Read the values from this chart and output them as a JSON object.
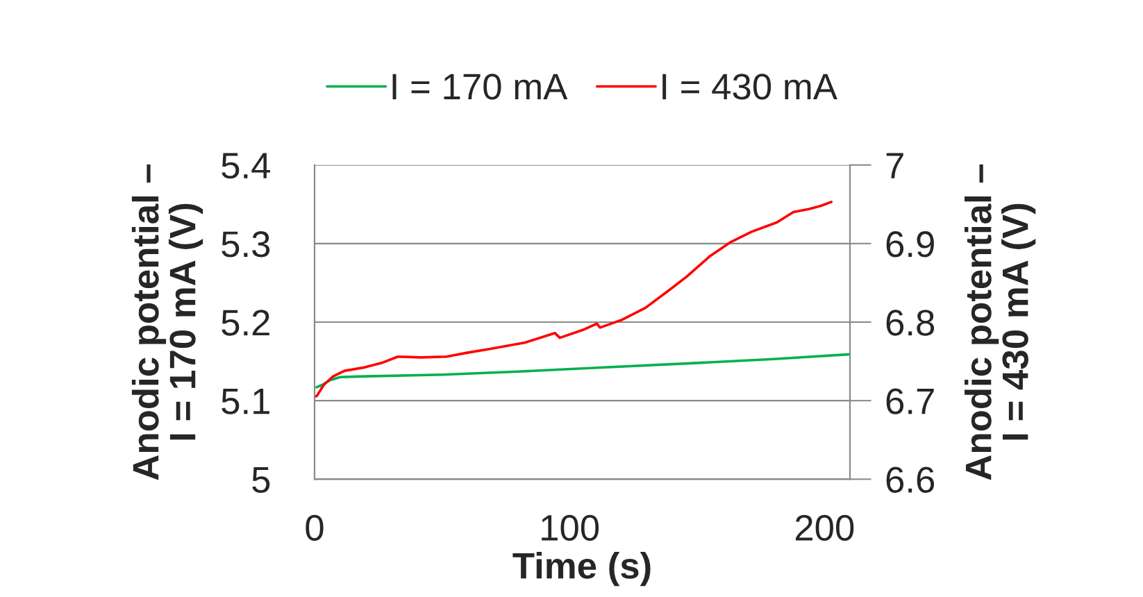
{
  "chart_data": {
    "type": "line",
    "xlabel": "Time (s)",
    "ylabel": "Anodic potential –\nI = 170 mA (V)",
    "y2label": "Anodic potential –\nI = 430 mA (V)",
    "xlim": [
      0,
      210
    ],
    "xticks": [
      0,
      100,
      200
    ],
    "ylim": [
      5,
      5.4
    ],
    "yticks": [
      5,
      5.1,
      5.2,
      5.3,
      5.4
    ],
    "y2lim": [
      6.6,
      7
    ],
    "y2ticks": [
      6.6,
      6.7,
      6.8,
      6.9,
      7
    ],
    "grid": "y",
    "legend": "top",
    "marker": "none",
    "line_style": "solid",
    "series": [
      {
        "name": "I = 170 mA",
        "color": "#00b050",
        "x": [
          0.8,
          3,
          6,
          10,
          20,
          50,
          80,
          105,
          150,
          180,
          210
        ],
        "values": [
          5.117,
          5.12,
          5.126,
          5.13,
          5.131,
          5.133,
          5.137,
          5.141,
          5.148,
          5.153,
          5.159
        ]
      },
      {
        "name": "I = 430 mA",
        "color": "#ff0000",
        "axis": "y2",
        "x": [
          0,
          0.9,
          3.6,
          7.3,
          11.8,
          19,
          26.3,
          32.7,
          41.7,
          51.7,
          59.9,
          69,
          82.6,
          94.3,
          96.2,
          105.2,
          110.7,
          112,
          120.6,
          129.7,
          138.8,
          146,
          155.1,
          163.3,
          171.4,
          181.4,
          187.8,
          194.1,
          198.6,
          202.7
        ],
        "values": [
          6.705,
          6.706,
          6.72,
          6.731,
          6.738,
          6.742,
          6.748,
          6.756,
          6.755,
          6.756,
          6.761,
          6.766,
          6.774,
          6.786,
          6.78,
          6.79,
          6.798,
          6.793,
          6.803,
          6.818,
          6.84,
          6.858,
          6.884,
          6.902,
          6.915,
          6.927,
          6.94,
          6.944,
          6.948,
          6.953
        ]
      }
    ]
  }
}
